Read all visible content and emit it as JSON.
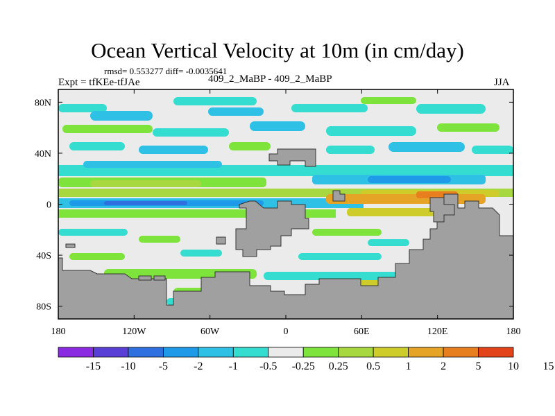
{
  "header": {
    "title": "Ocean Vertical Velocity at 10m (in cm/day)",
    "stats": "rmsd= 0.553277 diff= -0.0035641",
    "left_label": "Expt = tfKEe-tfJAe",
    "center_label": "409_2_MaBP - 409_2_MaBP",
    "right_label": "JJA"
  },
  "colors": {
    "land": "#a0a0a0",
    "ocean_neutral": "#ebebeb",
    "frame": "#000000"
  },
  "chart_data": {
    "type": "heatmap",
    "title": "Ocean Vertical Velocity at 10m (in cm/day)",
    "xlabel": "",
    "ylabel": "",
    "xlim": [
      -180,
      180
    ],
    "ylim": [
      -90,
      90
    ],
    "x_ticks": [
      {
        "value": -180,
        "label": "180"
      },
      {
        "value": -120,
        "label": "120W"
      },
      {
        "value": -60,
        "label": "60W"
      },
      {
        "value": 0,
        "label": "0"
      },
      {
        "value": 60,
        "label": "60E"
      },
      {
        "value": 120,
        "label": "120E"
      },
      {
        "value": 180,
        "label": "180"
      }
    ],
    "y_ticks": [
      {
        "value": 80,
        "label": "80N"
      },
      {
        "value": 40,
        "label": "40N"
      },
      {
        "value": 0,
        "label": "0"
      },
      {
        "value": -40,
        "label": "40S"
      },
      {
        "value": -80,
        "label": "80S"
      }
    ],
    "colorbar": {
      "colors": [
        "#8a2be2",
        "#5a3fd6",
        "#2f6fe0",
        "#1f9ae8",
        "#2fc0e6",
        "#35ddd0",
        "#ebebeb",
        "#7ee33a",
        "#a8d840",
        "#cdcc2a",
        "#e5a426",
        "#e77f1f",
        "#e2431a"
      ],
      "labels": [
        "-15",
        "-10",
        "-5",
        "-2",
        "-1",
        "-0.5",
        "-0.25",
        "0.25",
        "0.5",
        "1",
        "2",
        "5",
        "10",
        "15"
      ]
    },
    "features": [
      {
        "kind": "equatorial-negative-band",
        "lon": [
          -180,
          120
        ],
        "lat": [
          -3,
          3
        ],
        "level": "-2",
        "color": "#1f9ae8"
      },
      {
        "kind": "equatorial-positive-band",
        "lon": [
          -180,
          -20
        ],
        "lat": [
          4,
          10
        ],
        "level": "0.5",
        "color": "#a8d840"
      },
      {
        "kind": "equatorial-positive-band",
        "lon": [
          40,
          160
        ],
        "lat": [
          -8,
          12
        ],
        "level": "2",
        "color": "#e5a426"
      },
      {
        "kind": "tropical-negative-band",
        "lon": [
          -180,
          180
        ],
        "lat": [
          10,
          18
        ],
        "level": "-1",
        "color": "#2fc0e6"
      },
      {
        "kind": "high-lat-mixed",
        "lon": [
          -180,
          180
        ],
        "lat": [
          20,
          80
        ],
        "level": "-0.5",
        "color": "#35ddd0"
      },
      {
        "kind": "southern-ocean-mixed",
        "lon": [
          -170,
          100
        ],
        "lat": [
          -70,
          -50
        ],
        "level": "0.5",
        "color": "#7ee33a"
      }
    ]
  }
}
